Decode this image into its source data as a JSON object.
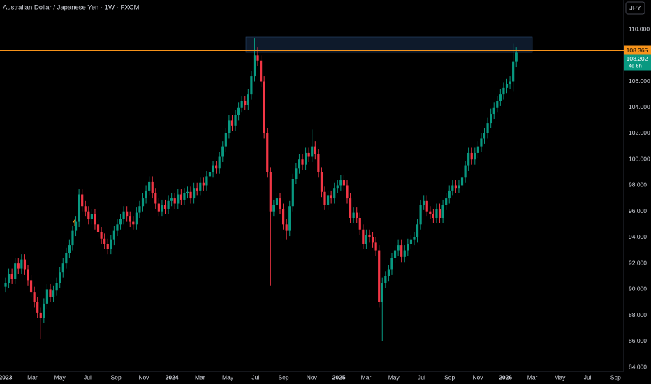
{
  "chart_data": {
    "type": "candlestick",
    "title": "Australian Dollar / Japanese Yen · 1W · FXCM",
    "currency": "JPY",
    "countdown": "4d 6h",
    "price_line": 108.365,
    "up_color": "#089981",
    "down_color": "#f23645",
    "price_line_color": "#f7931a",
    "ylim": [
      83.36,
      112.26
    ],
    "yticks": [
      {
        "value": 84,
        "label": "84.000"
      },
      {
        "value": 86,
        "label": "86.000"
      },
      {
        "value": 88,
        "label": "88.000"
      },
      {
        "value": 90,
        "label": "90.000"
      },
      {
        "value": 92,
        "label": "92.000"
      },
      {
        "value": 94,
        "label": "94.000"
      },
      {
        "value": 96,
        "label": "96.000"
      },
      {
        "value": 98,
        "label": "98.000"
      },
      {
        "value": 100,
        "label": "100.000"
      },
      {
        "value": 102,
        "label": "102.000"
      },
      {
        "value": 104,
        "label": "104.000"
      },
      {
        "value": 106,
        "label": "106.000"
      },
      {
        "value": 110,
        "label": "110.000"
      }
    ],
    "xlim": [
      -1.75,
      193.65
    ],
    "xticks": [
      {
        "value": 0,
        "label": "2023"
      },
      {
        "value": 8.4,
        "label": "Mar"
      },
      {
        "value": 17,
        "label": "May"
      },
      {
        "value": 25.7,
        "label": "Jul"
      },
      {
        "value": 34.6,
        "label": "Sep"
      },
      {
        "value": 43.3,
        "label": "Nov"
      },
      {
        "value": 52.1,
        "label": "2024"
      },
      {
        "value": 60.9,
        "label": "Mar"
      },
      {
        "value": 69.6,
        "label": "May"
      },
      {
        "value": 78.3,
        "label": "Jul"
      },
      {
        "value": 87.1,
        "label": "Sep"
      },
      {
        "value": 95.9,
        "label": "Nov"
      },
      {
        "value": 104.4,
        "label": "2025"
      },
      {
        "value": 112.9,
        "label": "Mar"
      },
      {
        "value": 121.6,
        "label": "May"
      },
      {
        "value": 130.3,
        "label": "Jul"
      },
      {
        "value": 139.1,
        "label": "Sep"
      },
      {
        "value": 147.9,
        "label": "Nov"
      },
      {
        "value": 156.6,
        "label": "2026"
      },
      {
        "value": 165,
        "label": "Mar"
      },
      {
        "value": 173.6,
        "label": "May"
      },
      {
        "value": 182.3,
        "label": "Jul"
      },
      {
        "value": 191.1,
        "label": "Sep"
      }
    ],
    "open": [
      90.2,
      90.5,
      91.2,
      90.8,
      92.0,
      91.6,
      92.3,
      91.5,
      90.7,
      89.8,
      89.0,
      88.2,
      87.8,
      88.9,
      90.0,
      89.4,
      89.9,
      90.5,
      91.3,
      92.0,
      92.8,
      93.4,
      94.5,
      95.2,
      97.3,
      96.4,
      96.0,
      95.4,
      95.8,
      95.0,
      94.4,
      93.9,
      93.5,
      93.1,
      93.8,
      94.5,
      95.0,
      95.4,
      96.0,
      95.6,
      95.2,
      95.0,
      95.9,
      96.4,
      97.0,
      97.6,
      98.3,
      97.4,
      96.6,
      96.0,
      96.5,
      96.2,
      96.8,
      97.0,
      96.6,
      97.3,
      96.9,
      97.4,
      97.5,
      97.0,
      97.8,
      97.6,
      98.2,
      98.0,
      98.7,
      99.0,
      99.5,
      99.3,
      100.2,
      101.0,
      102.0,
      103.0,
      102.6,
      103.4,
      104.0,
      104.5,
      104.2,
      105.0,
      106.4,
      108.0,
      107.6,
      106.0,
      102.0,
      99.0,
      96.0,
      96.5,
      97.0,
      96.2,
      95.0,
      94.5,
      96.4,
      98.5,
      99.3,
      100.0,
      99.6,
      100.5,
      100.2,
      101.0,
      100.4,
      99.0,
      97.5,
      96.5,
      97.2,
      97.0,
      97.8,
      98.0,
      98.4,
      98.0,
      97.0,
      95.5,
      95.9,
      95.5,
      94.6,
      93.5,
      94.2,
      94.0,
      93.6,
      93.0,
      89.0,
      90.5,
      91.0,
      91.5,
      92.4,
      93.0,
      93.4,
      92.5,
      93.0,
      93.5,
      93.8,
      94.0,
      95.0,
      96.5,
      96.8,
      96.0,
      95.8,
      95.5,
      96.2,
      95.5,
      96.5,
      97.0,
      97.6,
      98.0,
      97.8,
      98.0,
      98.6,
      99.5,
      100.5,
      100.0,
      100.5,
      101.0,
      101.6,
      102.0,
      102.8,
      103.5,
      104.0,
      104.5,
      105.0,
      105.5,
      105.8,
      106.0,
      107.5
    ],
    "high": [
      90.9,
      91.6,
      91.6,
      92.4,
      92.4,
      92.7,
      92.7,
      91.9,
      91.1,
      90.2,
      89.4,
      88.6,
      89.3,
      90.4,
      90.4,
      90.3,
      90.9,
      91.7,
      92.4,
      93.2,
      93.8,
      94.9,
      95.6,
      97.7,
      97.7,
      96.8,
      96.4,
      96.2,
      96.2,
      95.4,
      94.8,
      94.3,
      93.9,
      94.2,
      94.9,
      95.4,
      95.8,
      96.4,
      96.4,
      96.0,
      95.6,
      96.3,
      96.8,
      97.4,
      98.0,
      98.7,
      98.7,
      97.8,
      97.0,
      96.9,
      96.9,
      97.2,
      97.4,
      97.4,
      97.7,
      97.7,
      97.8,
      97.9,
      97.9,
      98.2,
      98.2,
      98.6,
      98.6,
      99.1,
      99.4,
      99.9,
      99.9,
      100.6,
      101.4,
      102.4,
      103.4,
      103.4,
      103.8,
      104.4,
      104.9,
      104.9,
      105.4,
      106.8,
      109.3,
      108.6,
      108.0,
      106.4,
      102.4,
      99.4,
      96.9,
      97.4,
      97.4,
      96.6,
      95.4,
      96.8,
      98.9,
      99.7,
      100.4,
      100.4,
      100.9,
      100.9,
      102.3,
      101.4,
      100.8,
      99.4,
      97.9,
      97.6,
      97.6,
      98.2,
      98.4,
      98.8,
      98.8,
      98.4,
      97.4,
      96.3,
      96.3,
      95.9,
      95.0,
      94.6,
      94.6,
      94.4,
      94.0,
      93.4,
      90.9,
      91.4,
      91.9,
      92.8,
      93.4,
      93.8,
      93.8,
      93.4,
      93.9,
      94.2,
      94.4,
      95.4,
      96.9,
      97.2,
      97.2,
      96.4,
      96.2,
      96.6,
      96.6,
      96.9,
      97.4,
      98.0,
      98.4,
      98.4,
      98.4,
      99.0,
      99.9,
      100.9,
      100.9,
      100.9,
      101.4,
      102.0,
      102.4,
      103.2,
      103.9,
      104.4,
      104.9,
      105.4,
      105.9,
      106.2,
      106.4,
      108.9,
      108.6
    ],
    "low": [
      89.8,
      90.1,
      90.4,
      90.4,
      91.2,
      91.2,
      91.1,
      90.3,
      89.4,
      88.6,
      87.8,
      86.2,
      87.4,
      88.5,
      89.0,
      89.0,
      89.5,
      90.1,
      90.9,
      91.6,
      92.4,
      93.0,
      94.1,
      94.8,
      96.0,
      95.6,
      95.0,
      95.0,
      94.6,
      94.0,
      93.5,
      93.1,
      92.7,
      92.7,
      93.4,
      94.1,
      94.6,
      95.0,
      95.2,
      94.8,
      94.6,
      94.6,
      95.5,
      96.0,
      96.6,
      97.2,
      97.0,
      96.2,
      95.6,
      95.6,
      95.8,
      95.8,
      96.4,
      96.2,
      96.2,
      96.5,
      96.5,
      97.0,
      96.6,
      96.6,
      97.2,
      97.2,
      97.6,
      97.6,
      98.3,
      98.6,
      98.9,
      98.9,
      99.8,
      100.6,
      101.6,
      102.2,
      102.2,
      103.0,
      103.6,
      103.8,
      103.8,
      104.6,
      106.0,
      107.2,
      105.6,
      101.6,
      98.6,
      90.3,
      95.6,
      96.1,
      95.8,
      94.6,
      93.8,
      94.1,
      96.0,
      98.1,
      98.9,
      99.2,
      99.2,
      99.8,
      99.8,
      100.0,
      98.6,
      97.1,
      96.1,
      96.1,
      96.6,
      96.6,
      97.4,
      97.6,
      97.6,
      96.6,
      95.1,
      95.1,
      95.1,
      94.2,
      93.1,
      93.1,
      93.6,
      93.2,
      92.6,
      88.6,
      86.0,
      90.1,
      90.6,
      91.1,
      92.0,
      92.6,
      92.1,
      92.1,
      92.6,
      93.1,
      93.4,
      93.6,
      94.6,
      96.1,
      95.6,
      95.4,
      95.1,
      95.1,
      95.1,
      95.1,
      96.1,
      96.6,
      97.2,
      97.4,
      97.4,
      97.6,
      98.2,
      99.1,
      99.6,
      99.6,
      100.1,
      100.6,
      101.2,
      101.6,
      102.4,
      103.1,
      103.6,
      104.1,
      104.6,
      105.1,
      105.4,
      105.2,
      107.1
    ],
    "close": [
      90.5,
      91.2,
      90.8,
      92.0,
      91.6,
      92.3,
      91.5,
      90.7,
      89.8,
      89.0,
      88.2,
      87.8,
      88.9,
      90.0,
      89.4,
      89.9,
      90.5,
      91.3,
      92.0,
      92.8,
      93.4,
      94.5,
      95.2,
      97.3,
      96.4,
      96.0,
      95.4,
      95.8,
      95.0,
      94.4,
      93.9,
      93.5,
      93.1,
      93.8,
      94.5,
      95.0,
      95.4,
      96.0,
      95.6,
      95.2,
      95.0,
      95.9,
      96.4,
      97.0,
      97.6,
      98.3,
      97.4,
      96.6,
      96.0,
      96.5,
      96.2,
      96.8,
      97.0,
      96.6,
      97.3,
      96.9,
      97.4,
      97.5,
      97.0,
      97.8,
      97.6,
      98.2,
      98.0,
      98.7,
      99.0,
      99.5,
      99.3,
      100.2,
      101.0,
      102.0,
      103.0,
      102.6,
      103.4,
      104.0,
      104.5,
      104.2,
      105.0,
      106.4,
      108.0,
      107.6,
      106.0,
      102.0,
      99.0,
      96.0,
      96.5,
      97.0,
      96.2,
      95.0,
      94.5,
      96.4,
      98.5,
      99.3,
      100.0,
      99.6,
      100.5,
      100.2,
      101.0,
      100.4,
      99.0,
      97.5,
      96.5,
      97.2,
      97.0,
      97.8,
      98.0,
      98.4,
      98.0,
      97.0,
      95.5,
      95.9,
      95.5,
      94.6,
      93.5,
      94.2,
      94.0,
      93.6,
      93.0,
      89.0,
      90.5,
      91.0,
      91.5,
      92.4,
      93.0,
      93.4,
      92.5,
      93.0,
      93.5,
      93.8,
      94.0,
      95.0,
      96.5,
      96.8,
      96.0,
      95.8,
      95.5,
      96.2,
      95.5,
      96.5,
      97.0,
      97.6,
      98.0,
      97.8,
      98.0,
      98.6,
      99.5,
      100.5,
      100.0,
      100.5,
      101.0,
      101.6,
      102.0,
      102.8,
      103.5,
      104.0,
      104.5,
      105.0,
      105.5,
      105.8,
      106.0,
      107.5,
      108.202
    ]
  }
}
